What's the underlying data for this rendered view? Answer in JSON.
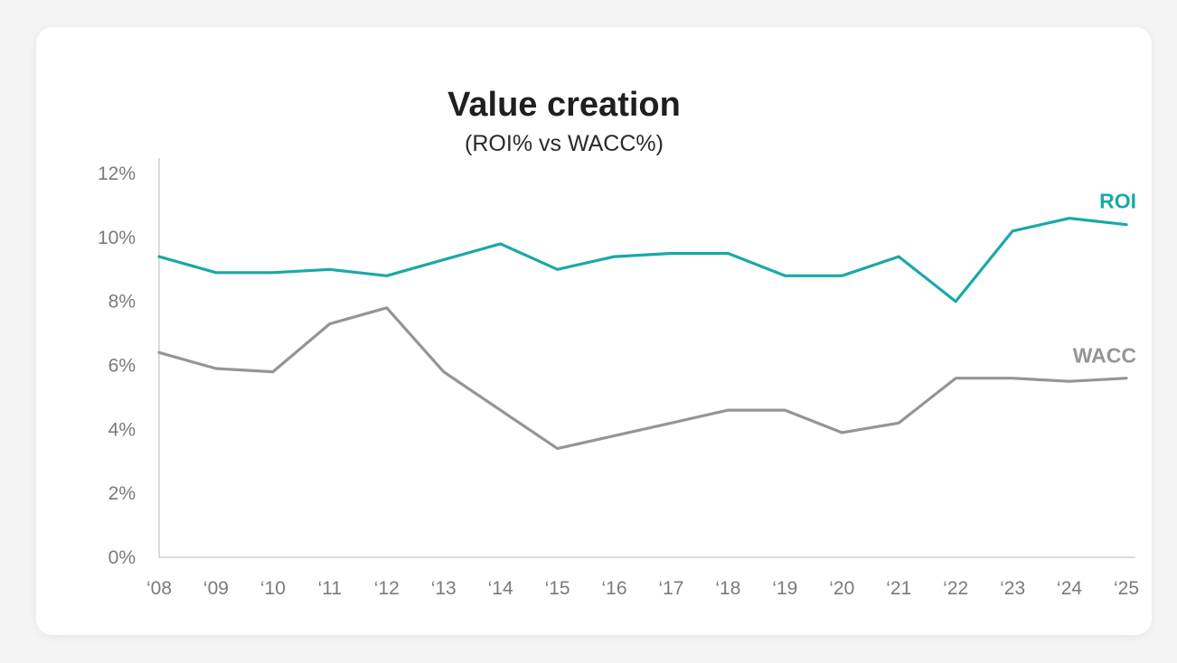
{
  "chart_data": {
    "type": "line",
    "title": "Value creation",
    "subtitle": "(ROI% vs WACC%)",
    "xlabel": "",
    "ylabel": "",
    "categories": [
      "‘08",
      "‘09",
      "‘10",
      "‘11",
      "‘12",
      "‘13",
      "‘14",
      "‘15",
      "‘16",
      "‘17",
      "‘18",
      "‘19",
      "‘20",
      "‘21",
      "‘22",
      "‘23",
      "‘24",
      "‘25"
    ],
    "yticks": [
      "0%",
      "2%",
      "4%",
      "6%",
      "8%",
      "10%",
      "12%"
    ],
    "ylim": [
      0,
      12
    ],
    "grid": false,
    "series": [
      {
        "name": "ROI",
        "color": "#1aa8a8",
        "values": [
          9.4,
          8.9,
          8.9,
          9.0,
          8.8,
          9.3,
          9.8,
          9.0,
          9.4,
          9.5,
          9.5,
          8.8,
          8.8,
          9.4,
          8.0,
          10.2,
          10.6,
          10.4
        ]
      },
      {
        "name": "WACC",
        "color": "#959595",
        "values": [
          6.4,
          5.9,
          5.8,
          7.3,
          7.8,
          5.8,
          4.6,
          3.4,
          3.8,
          4.2,
          4.6,
          4.6,
          3.9,
          4.2,
          5.6,
          5.6,
          5.5,
          5.6
        ]
      }
    ]
  }
}
